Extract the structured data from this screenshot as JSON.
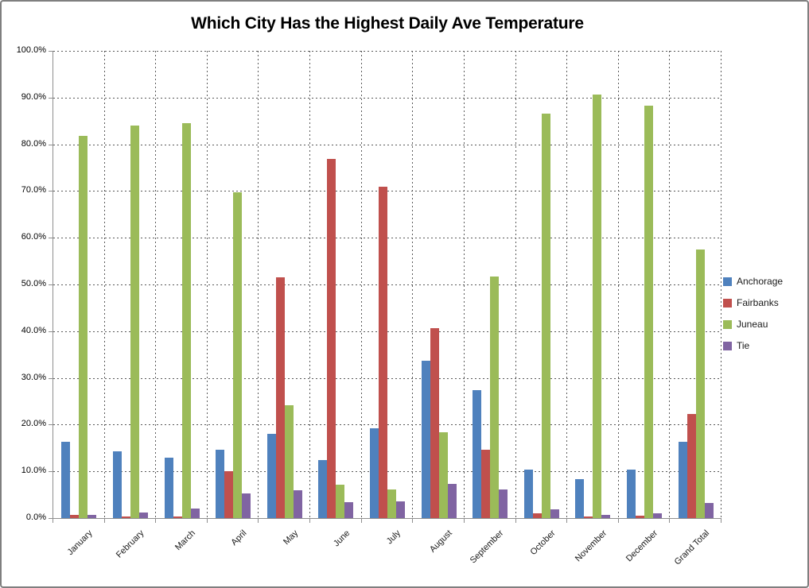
{
  "title": "Which City Has the Highest Daily Ave Temperature",
  "chart_data": {
    "type": "bar",
    "title": "Which City Has the Highest Daily Ave Temperature",
    "xlabel": "",
    "ylabel": "",
    "ylim": [
      0,
      100
    ],
    "ytick_step": 10,
    "ytick_labels_top_to_bottom": [
      "100.0%",
      "90.0%",
      "80.0%",
      "70.0%",
      "60.0%",
      "50.0%",
      "40.0%",
      "30.0%",
      "20.0%",
      "10.0%",
      "0.0%"
    ],
    "grid": true,
    "legend_position": "right",
    "categories": [
      "January",
      "February",
      "March",
      "April",
      "May",
      "June",
      "July",
      "August",
      "September",
      "October",
      "November",
      "December",
      "Grand Total"
    ],
    "series": [
      {
        "name": "Anchorage",
        "color": "#4F81BD",
        "values": [
          16.4,
          14.3,
          13.0,
          14.6,
          18.1,
          12.4,
          19.2,
          33.6,
          27.3,
          10.3,
          8.3,
          10.4,
          16.4
        ]
      },
      {
        "name": "Fairbanks",
        "color": "#C0504D",
        "values": [
          0.7,
          0.4,
          0.3,
          10.1,
          51.6,
          76.9,
          70.9,
          40.6,
          14.6,
          1.1,
          0.3,
          0.5,
          22.3
        ]
      },
      {
        "name": "Juneau",
        "color": "#9BBB59",
        "values": [
          81.8,
          84.0,
          84.5,
          69.8,
          24.1,
          7.2,
          6.1,
          18.3,
          51.7,
          86.6,
          90.6,
          88.2,
          57.5
        ]
      },
      {
        "name": "Tie",
        "color": "#8064A2",
        "values": [
          0.7,
          1.2,
          2.0,
          5.3,
          6.0,
          3.4,
          3.6,
          7.3,
          6.2,
          1.8,
          0.7,
          1.0,
          3.3
        ]
      }
    ],
    "colors": {
      "axis": "#8e8e8e",
      "gridline": "#595959",
      "frame_border": "#7f7f7f",
      "background": "#ffffff"
    }
  }
}
